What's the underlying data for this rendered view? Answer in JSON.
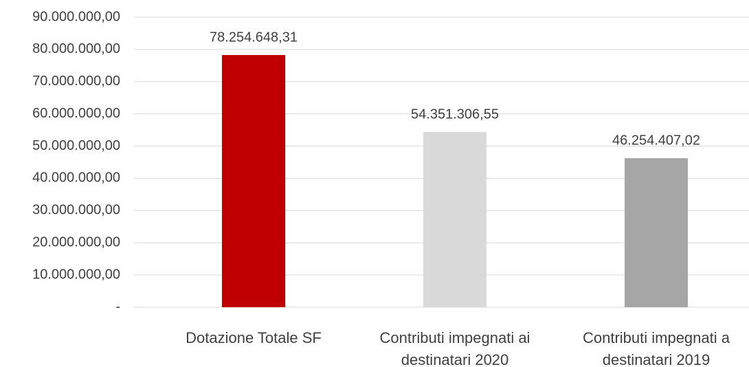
{
  "chart_data": {
    "type": "bar",
    "categories": [
      "Dotazione Totale SF",
      "Contributi impegnati ai destinatari 2020",
      "Contributi impegnati a destinatari 2019"
    ],
    "values": [
      78254648.31,
      54351306.55,
      46254407.02
    ],
    "value_labels": [
      "78.254.648,31",
      "54.351.306,55",
      "46.254.407,02"
    ],
    "colors": [
      "#c00000",
      "#d9d9d9",
      "#a6a6a6"
    ],
    "ylim": [
      0,
      90000000
    ],
    "yticks": [
      {
        "value": 0,
        "label": "-"
      },
      {
        "value": 10000000,
        "label": "10.000.000,00"
      },
      {
        "value": 20000000,
        "label": "20.000.000,00"
      },
      {
        "value": 30000000,
        "label": "30.000.000,00"
      },
      {
        "value": 40000000,
        "label": "40.000.000,00"
      },
      {
        "value": 50000000,
        "label": "50.000.000,00"
      },
      {
        "value": 60000000,
        "label": "60.000.000,00"
      },
      {
        "value": 70000000,
        "label": "70.000.000,00"
      },
      {
        "value": 80000000,
        "label": "80.000.000,00"
      },
      {
        "value": 90000000,
        "label": "90.000.000,00"
      }
    ],
    "grid": true
  }
}
